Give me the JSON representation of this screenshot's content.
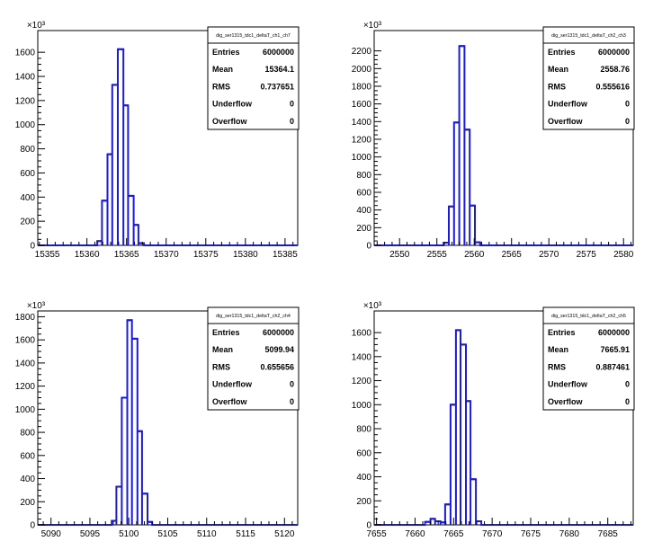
{
  "chart_data": [
    {
      "type": "histogram",
      "title": "",
      "xlabel": "",
      "ylabel": "",
      "y_multiplier": "×10³",
      "xlim": [
        15353.8,
        15386.6
      ],
      "ylim": [
        0,
        1780
      ],
      "xticks": [
        15355,
        15360,
        15365,
        15370,
        15375,
        15380,
        15385
      ],
      "yticks": [
        0,
        200,
        400,
        600,
        800,
        1000,
        1200,
        1400,
        1600
      ],
      "bins": [
        {
          "x0": 15361.3,
          "x1": 15361.9,
          "y": 35
        },
        {
          "x0": 15361.9,
          "x1": 15362.6,
          "y": 370
        },
        {
          "x0": 15362.6,
          "x1": 15363.2,
          "y": 755
        },
        {
          "x0": 15363.2,
          "x1": 15363.9,
          "y": 1330
        },
        {
          "x0": 15363.9,
          "x1": 15364.6,
          "y": 1625
        },
        {
          "x0": 15364.6,
          "x1": 15365.2,
          "y": 1160
        },
        {
          "x0": 15365.2,
          "x1": 15365.9,
          "y": 410
        },
        {
          "x0": 15365.9,
          "x1": 15366.5,
          "y": 170
        },
        {
          "x0": 15366.5,
          "x1": 15367.2,
          "y": 18
        }
      ],
      "stats": {
        "name": "dig_ser1315_tdc1_deltaT_ch1_ch7",
        "rows": [
          {
            "label": "Entries",
            "value": "6000000"
          },
          {
            "label": "Mean",
            "value": "15364.1"
          },
          {
            "label": "RMS",
            "value": "0.737651"
          },
          {
            "label": "Underflow",
            "value": "0"
          },
          {
            "label": "Overflow",
            "value": "0"
          }
        ]
      }
    },
    {
      "type": "histogram",
      "title": "",
      "xlabel": "",
      "ylabel": "",
      "y_multiplier": "×10³",
      "xlim": [
        2546.6,
        2581.3
      ],
      "ylim": [
        0,
        2430
      ],
      "xticks": [
        2550,
        2555,
        2560,
        2565,
        2570,
        2575,
        2580
      ],
      "yticks": [
        0,
        200,
        400,
        600,
        800,
        1000,
        1200,
        1400,
        1600,
        1800,
        2000,
        2200
      ],
      "bins": [
        {
          "x0": 2555.9,
          "x1": 2556.6,
          "y": 30
        },
        {
          "x0": 2556.6,
          "x1": 2557.3,
          "y": 440
        },
        {
          "x0": 2557.3,
          "x1": 2558.0,
          "y": 1390
        },
        {
          "x0": 2558.0,
          "x1": 2558.7,
          "y": 2255
        },
        {
          "x0": 2558.7,
          "x1": 2559.4,
          "y": 1310
        },
        {
          "x0": 2559.4,
          "x1": 2560.1,
          "y": 450
        },
        {
          "x0": 2560.1,
          "x1": 2560.8,
          "y": 35
        }
      ],
      "stats": {
        "name": "dig_ser1315_tdc1_deltaT_ch2_ch3",
        "rows": [
          {
            "label": "Entries",
            "value": "6000000"
          },
          {
            "label": "Mean",
            "value": "2558.76"
          },
          {
            "label": "RMS",
            "value": "0.555616"
          },
          {
            "label": "Underflow",
            "value": "0"
          },
          {
            "label": "Overflow",
            "value": "0"
          }
        ]
      }
    },
    {
      "type": "histogram",
      "title": "",
      "xlabel": "",
      "ylabel": "",
      "y_multiplier": "×10³",
      "xlim": [
        5088.3,
        5121.7
      ],
      "ylim": [
        0,
        1850
      ],
      "xticks": [
        5090,
        5095,
        5100,
        5105,
        5110,
        5115,
        5120
      ],
      "yticks": [
        0,
        200,
        400,
        600,
        800,
        1000,
        1200,
        1400,
        1600,
        1800
      ],
      "bins": [
        {
          "x0": 5097.8,
          "x1": 5098.4,
          "y": 35
        },
        {
          "x0": 5098.4,
          "x1": 5099.1,
          "y": 330
        },
        {
          "x0": 5099.1,
          "x1": 5099.8,
          "y": 1100
        },
        {
          "x0": 5099.8,
          "x1": 5100.4,
          "y": 1770
        },
        {
          "x0": 5100.4,
          "x1": 5101.1,
          "y": 1610
        },
        {
          "x0": 5101.1,
          "x1": 5101.7,
          "y": 810
        },
        {
          "x0": 5101.7,
          "x1": 5102.4,
          "y": 270
        },
        {
          "x0": 5102.4,
          "x1": 5103.0,
          "y": 25
        }
      ],
      "stats": {
        "name": "dig_ser1315_tdc1_deltaT_ch2_ch4",
        "rows": [
          {
            "label": "Entries",
            "value": "6000000"
          },
          {
            "label": "Mean",
            "value": "5099.94"
          },
          {
            "label": "RMS",
            "value": "0.655656"
          },
          {
            "label": "Underflow",
            "value": "0"
          },
          {
            "label": "Overflow",
            "value": "0"
          }
        ]
      }
    },
    {
      "type": "histogram",
      "title": "",
      "xlabel": "",
      "ylabel": "",
      "y_multiplier": "×10³",
      "xlim": [
        7654.7,
        7688.3
      ],
      "ylim": [
        0,
        1780
      ],
      "xticks": [
        7655,
        7660,
        7665,
        7670,
        7675,
        7680,
        7685
      ],
      "yticks": [
        0,
        200,
        400,
        600,
        800,
        1000,
        1200,
        1400,
        1600
      ],
      "bins": [
        {
          "x0": 7661.3,
          "x1": 7662.0,
          "y": 25
        },
        {
          "x0": 7662.0,
          "x1": 7662.6,
          "y": 50
        },
        {
          "x0": 7662.6,
          "x1": 7663.3,
          "y": 30
        },
        {
          "x0": 7663.3,
          "x1": 7663.9,
          "y": 20
        },
        {
          "x0": 7663.9,
          "x1": 7664.6,
          "y": 170
        },
        {
          "x0": 7664.6,
          "x1": 7665.3,
          "y": 1000
        },
        {
          "x0": 7665.3,
          "x1": 7665.9,
          "y": 1620
        },
        {
          "x0": 7665.9,
          "x1": 7666.6,
          "y": 1500
        },
        {
          "x0": 7666.6,
          "x1": 7667.2,
          "y": 1030
        },
        {
          "x0": 7667.2,
          "x1": 7667.9,
          "y": 380
        },
        {
          "x0": 7667.9,
          "x1": 7668.6,
          "y": 30
        }
      ],
      "stats": {
        "name": "dig_ser1315_tdc1_deltaT_ch2_ch5",
        "rows": [
          {
            "label": "Entries",
            "value": "6000000"
          },
          {
            "label": "Mean",
            "value": "7665.91"
          },
          {
            "label": "RMS",
            "value": "0.887461"
          },
          {
            "label": "Underflow",
            "value": "0"
          },
          {
            "label": "Overflow",
            "value": "0"
          }
        ]
      }
    }
  ]
}
